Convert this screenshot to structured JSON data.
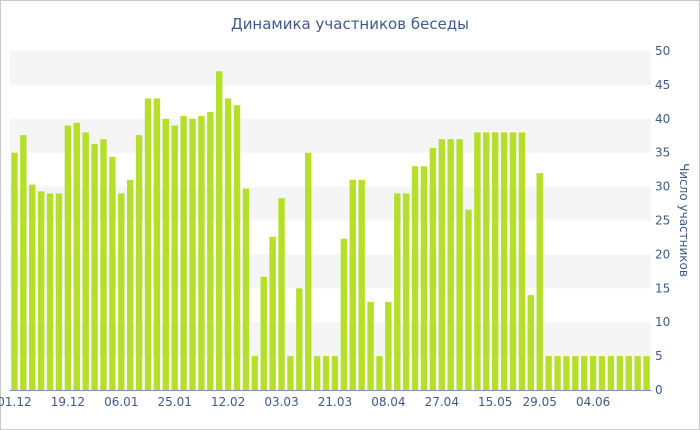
{
  "chart_data": {
    "type": "bar",
    "title": "Динамика участников беседы",
    "ylabel": "Число участников",
    "xlabel": "",
    "ylim": [
      0,
      50
    ],
    "yticks": [
      0,
      5,
      10,
      15,
      20,
      25,
      30,
      35,
      40,
      45,
      50
    ],
    "y_axis_side": "right",
    "grid": "alternating horizontal bands",
    "legend": "none",
    "bar_color": "#b5df2b",
    "band_color": "#f5f5f5",
    "text_color": "#3e5a8a",
    "xtick_labels": [
      "01.12",
      "19.12",
      "06.01",
      "25.01",
      "12.02",
      "03.03",
      "21.03",
      "08.04",
      "27.04",
      "15.05",
      "29.05",
      "04.06"
    ],
    "xtick_positions": [
      0,
      6,
      12,
      18,
      24,
      30,
      36,
      42,
      48,
      54,
      59,
      65
    ],
    "values": [
      35,
      37.6,
      30.3,
      29.3,
      29,
      29,
      39,
      39.4,
      38,
      36.3,
      37,
      34.4,
      29,
      31,
      37.6,
      43,
      43,
      40,
      39,
      40.4,
      40,
      40.4,
      41,
      47,
      43,
      42,
      29.7,
      5,
      16.7,
      22.6,
      28.3,
      5,
      15,
      35,
      5,
      5,
      5,
      22.3,
      31,
      31,
      13,
      5,
      13,
      29,
      29,
      33,
      33,
      35.7,
      37,
      37,
      37,
      26.6,
      38,
      38,
      38,
      38,
      38,
      38,
      14,
      32,
      5,
      5,
      5,
      5,
      5,
      5,
      5,
      5,
      5,
      5,
      5,
      5
    ]
  }
}
